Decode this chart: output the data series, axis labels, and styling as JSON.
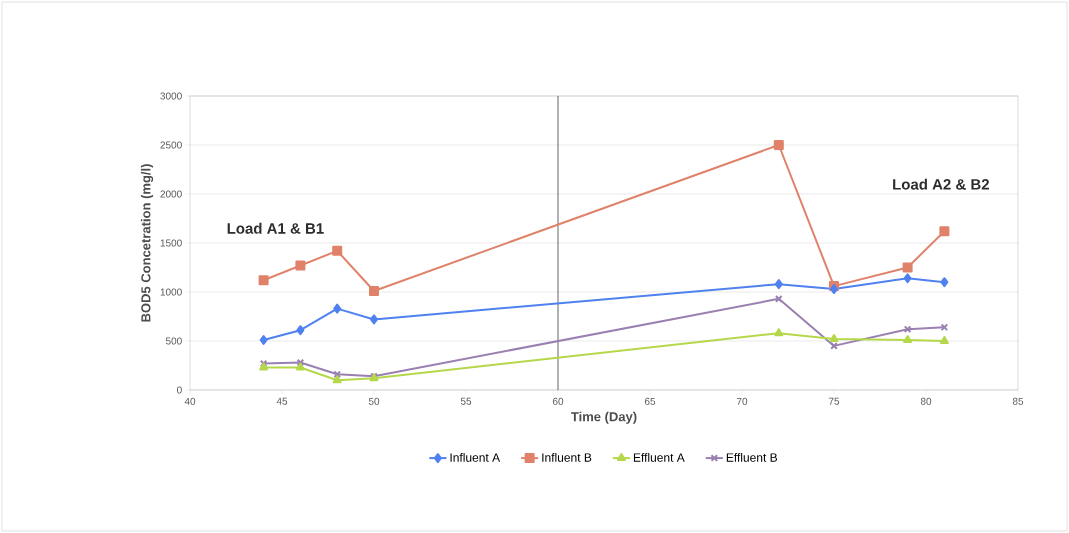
{
  "chart_data": {
    "type": "line",
    "xlabel": "Time (Day)",
    "ylabel": "BOD5 Concetration (mg/l)",
    "x": [
      44,
      46,
      48,
      50,
      72,
      75,
      79,
      81
    ],
    "series": [
      {
        "name": "Influent A",
        "color": "#4f81f0",
        "marker": "diamond",
        "values": [
          510,
          610,
          830,
          720,
          1080,
          1030,
          1140,
          1100
        ]
      },
      {
        "name": "Influent B",
        "color": "#e0826a",
        "marker": "square",
        "values": [
          1120,
          1270,
          1420,
          1010,
          2500,
          1060,
          1250,
          1620
        ]
      },
      {
        "name": "Effluent A",
        "color": "#b4d84a",
        "marker": "triangle",
        "values": [
          230,
          230,
          100,
          120,
          580,
          520,
          510,
          500
        ]
      },
      {
        "name": "Effluent B",
        "color": "#9a80b0",
        "marker": "cross",
        "values": [
          270,
          280,
          160,
          140,
          930,
          450,
          620,
          640
        ]
      }
    ],
    "xlim": [
      40,
      85
    ],
    "xticks": [
      40,
      45,
      50,
      55,
      60,
      65,
      70,
      75,
      80,
      85
    ],
    "ylim": [
      0,
      3000
    ],
    "yticks": [
      0,
      500,
      1000,
      1500,
      2000,
      2500,
      3000
    ],
    "grid": "y",
    "legend": "bottom",
    "line_style": "solid",
    "ref_lines": [
      {
        "axis": "x",
        "value": 60,
        "color": "#404040"
      }
    ],
    "annotations": [
      "Load A1 & B1",
      "Load A2 & B2"
    ]
  }
}
